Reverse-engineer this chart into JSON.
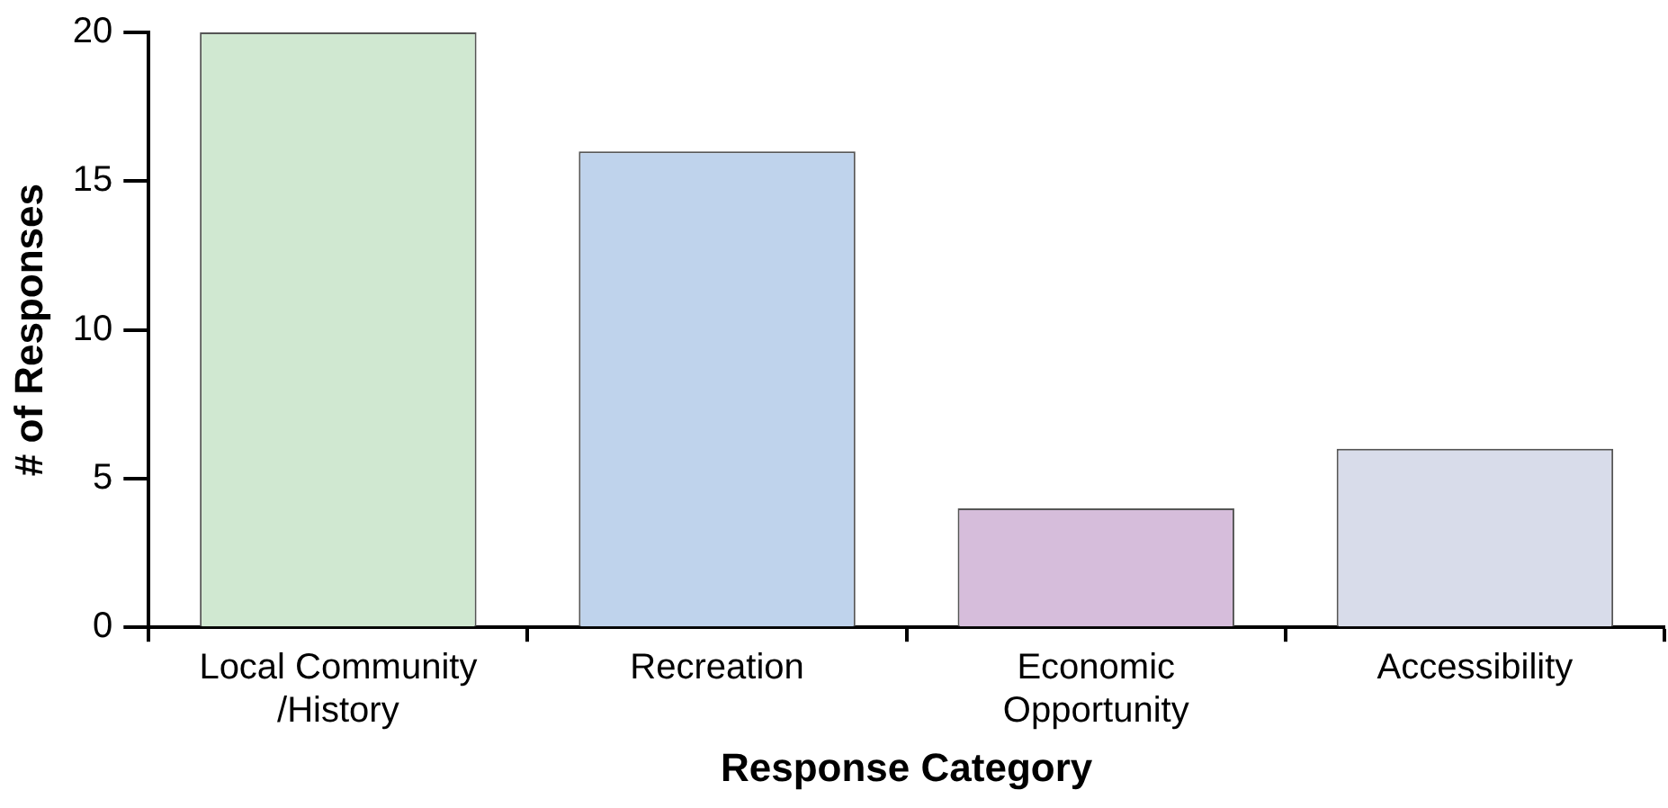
{
  "chart_data": {
    "type": "bar",
    "xlabel": "Response Category",
    "ylabel": "# of Responses",
    "categories": [
      "Local Community\n/History",
      "Recreation",
      "Economic\nOpportunity",
      "Accessibility"
    ],
    "values": [
      20,
      16,
      4,
      6
    ],
    "colors": [
      "#d0e8d1",
      "#bfd3ec",
      "#d6bddb",
      "#d8dcea"
    ],
    "ylim": [
      0,
      20
    ],
    "yticks": [
      0,
      5,
      10,
      15,
      20
    ],
    "grid": false,
    "legend": false
  }
}
